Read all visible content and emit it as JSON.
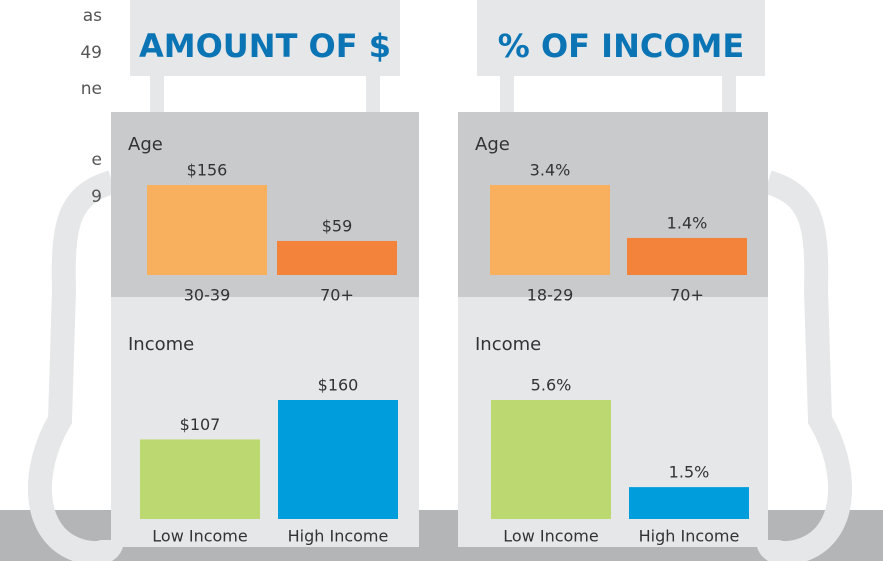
{
  "intro": [
    "as",
    "49",
    "ne",
    "e",
    "9"
  ],
  "panels": [
    {
      "title": "AMOUNT OF $"
    },
    {
      "title": "% OF INCOME"
    }
  ],
  "chart_data": [
    {
      "type": "bar",
      "title": "Age",
      "categories": [
        "30-39",
        "70+"
      ],
      "values": [
        156,
        59
      ],
      "value_labels": [
        "$156",
        "$59"
      ],
      "colors": [
        "#f9b05e",
        "#f3823a"
      ]
    },
    {
      "type": "bar",
      "title": "Income",
      "categories": [
        "Low Income",
        "High Income"
      ],
      "values": [
        107,
        160
      ],
      "value_labels": [
        "$107",
        "$160"
      ],
      "colors": [
        "#bcd870",
        "#009ddc"
      ]
    },
    {
      "type": "bar",
      "title": "Age",
      "categories": [
        "18-29",
        "70+"
      ],
      "values": [
        3.4,
        1.4
      ],
      "value_labels": [
        "3.4%",
        "1.4%"
      ],
      "colors": [
        "#f9b05e",
        "#f3823a"
      ]
    },
    {
      "type": "bar",
      "title": "Income",
      "categories": [
        "Low Income",
        "High Income"
      ],
      "values": [
        5.6,
        1.5
      ],
      "value_labels": [
        "5.6%",
        "1.5%"
      ],
      "colors": [
        "#bcd870",
        "#009ddc"
      ]
    }
  ]
}
